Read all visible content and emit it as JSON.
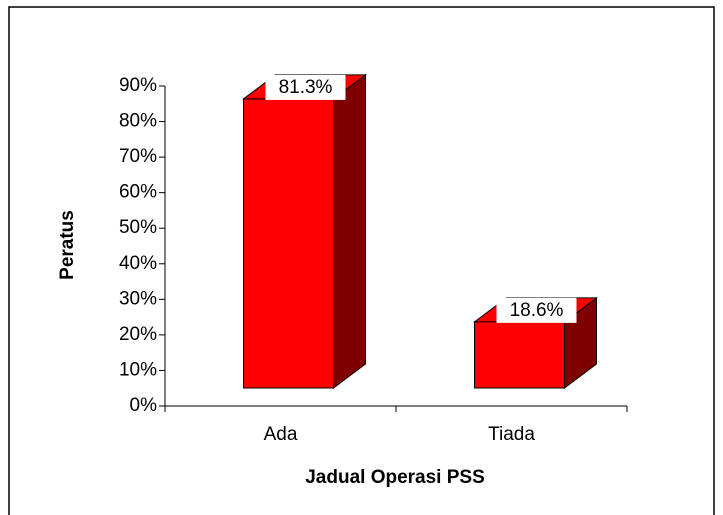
{
  "chart_data": {
    "type": "bar3d",
    "x_label": "Jadual Operasi PSS",
    "y_label": "Peratus",
    "categories": [
      "Ada",
      "Tiada"
    ],
    "values": [
      81.3,
      18.6
    ],
    "value_labels": [
      "81.3%",
      "18.6%"
    ],
    "color": "#ff0000",
    "ylim": [
      0,
      90
    ],
    "yticks": [
      {
        "value": 0,
        "label": "0%"
      },
      {
        "value": 10,
        "label": "10%"
      },
      {
        "value": 20,
        "label": "20%"
      },
      {
        "value": 30,
        "label": "30%"
      },
      {
        "value": 40,
        "label": "40%"
      },
      {
        "value": 50,
        "label": "50%"
      },
      {
        "value": 60,
        "label": "60%"
      },
      {
        "value": 70,
        "label": "70%"
      },
      {
        "value": 80,
        "label": "80%"
      },
      {
        "value": 90,
        "label": "90%"
      }
    ]
  }
}
